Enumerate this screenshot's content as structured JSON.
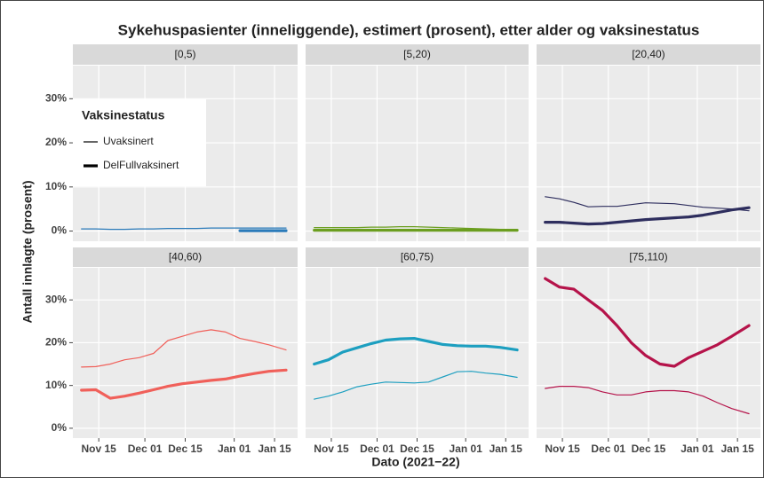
{
  "chart_data": {
    "type": "line",
    "title": "Sykehuspasienter (inneliggende), estimert (prosent), etter alder og vaksinestatus",
    "x_label": "Dato (2021−22)",
    "y_label": "Antall innlagte (prosent)",
    "legend_title": "Vaksinestatus",
    "series_names": [
      "Uvaksinert",
      "DelFullvaksinert"
    ],
    "line_widths": [
      1.2,
      3.2
    ],
    "x": [
      "2021-11-09",
      "2021-11-14",
      "2021-11-19",
      "2021-11-24",
      "2021-11-29",
      "2021-12-04",
      "2021-12-09",
      "2021-12-14",
      "2021-12-19",
      "2021-12-24",
      "2021-12-29",
      "2022-01-03",
      "2022-01-08",
      "2022-01-13",
      "2022-01-19"
    ],
    "xlim": [
      "2021-11-06",
      "2022-01-23"
    ],
    "xticks": [
      {
        "value": "2021-11-15",
        "label": "Nov 15"
      },
      {
        "value": "2021-12-01",
        "label": "Dec 01"
      },
      {
        "value": "2021-12-15",
        "label": "Dec 15"
      },
      {
        "value": "2022-01-01",
        "label": "Jan 01"
      },
      {
        "value": "2022-01-15",
        "label": "Jan 15"
      }
    ],
    "ylim": [
      -2.3,
      37.5
    ],
    "yticks": [
      {
        "value": 0,
        "label": "0%"
      },
      {
        "value": 10,
        "label": "10%"
      },
      {
        "value": 20,
        "label": "20%"
      },
      {
        "value": 30,
        "label": "30%"
      }
    ],
    "grid": true,
    "panels": [
      {
        "name": "[0,5)",
        "color": "#2b7bba",
        "series": [
          {
            "values": [
              0.5,
              0.5,
              0.4,
              0.4,
              0.5,
              0.5,
              0.6,
              0.6,
              0.6,
              0.7,
              0.7,
              0.7,
              0.7,
              0.7,
              0.7
            ]
          },
          {
            "values": [
              null,
              null,
              null,
              null,
              null,
              null,
              null,
              null,
              null,
              null,
              null,
              0.1,
              0.1,
              0.1,
              0.1
            ]
          }
        ]
      },
      {
        "name": "[5,20)",
        "color": "#6b9e1f",
        "series": [
          {
            "values": [
              0.8,
              0.8,
              0.8,
              0.8,
              0.9,
              0.9,
              1.0,
              1.0,
              0.9,
              0.8,
              0.7,
              0.6,
              0.5,
              0.4,
              0.3
            ]
          },
          {
            "values": [
              0.2,
              0.2,
              0.2,
              0.2,
              0.2,
              0.2,
              0.2,
              0.2,
              0.2,
              0.2,
              0.2,
              0.2,
              0.2,
              0.2,
              0.2
            ]
          }
        ]
      },
      {
        "name": "[20,40)",
        "color": "#2e2e5e",
        "series": [
          {
            "values": [
              7.8,
              7.3,
              6.5,
              5.5,
              5.6,
              5.6,
              6.0,
              6.4,
              6.3,
              6.2,
              5.8,
              5.4,
              5.2,
              5.0,
              4.6
            ]
          },
          {
            "values": [
              2.0,
              2.0,
              1.8,
              1.6,
              1.7,
              2.0,
              2.3,
              2.6,
              2.8,
              3.0,
              3.2,
              3.6,
              4.2,
              4.8,
              5.3
            ]
          }
        ]
      },
      {
        "name": "[40,60)",
        "color": "#f0605a",
        "series": [
          {
            "values": [
              14.3,
              14.4,
              15.0,
              16.0,
              16.5,
              17.5,
              20.5,
              21.5,
              22.5,
              23.0,
              22.5,
              21.0,
              20.3,
              19.5,
              18.3
            ]
          },
          {
            "values": [
              8.9,
              9.0,
              7.0,
              7.5,
              8.2,
              9.0,
              9.8,
              10.4,
              10.8,
              11.2,
              11.5,
              12.2,
              12.8,
              13.3,
              13.6
            ]
          }
        ]
      },
      {
        "name": "[60,75)",
        "color": "#1d9fc0",
        "series": [
          {
            "values": [
              6.8,
              7.5,
              8.5,
              9.7,
              10.3,
              10.8,
              10.7,
              10.6,
              10.8,
              12.0,
              13.2,
              13.3,
              12.9,
              12.6,
              11.9
            ]
          },
          {
            "values": [
              15.0,
              16.0,
              17.8,
              18.8,
              19.8,
              20.6,
              20.9,
              21.0,
              20.3,
              19.6,
              19.3,
              19.2,
              19.2,
              18.9,
              18.3
            ]
          }
        ]
      },
      {
        "name": "[75,110)",
        "color": "#b5134a",
        "series": [
          {
            "values": [
              9.3,
              9.8,
              9.8,
              9.5,
              8.5,
              7.8,
              7.8,
              8.5,
              8.8,
              8.8,
              8.5,
              7.5,
              6.0,
              4.6,
              3.4
            ]
          },
          {
            "values": [
              35.0,
              33.0,
              32.5,
              30.0,
              27.5,
              24.0,
              20.0,
              17.0,
              15.0,
              14.5,
              16.5,
              18.0,
              19.5,
              21.5,
              24.0
            ]
          }
        ]
      }
    ]
  }
}
